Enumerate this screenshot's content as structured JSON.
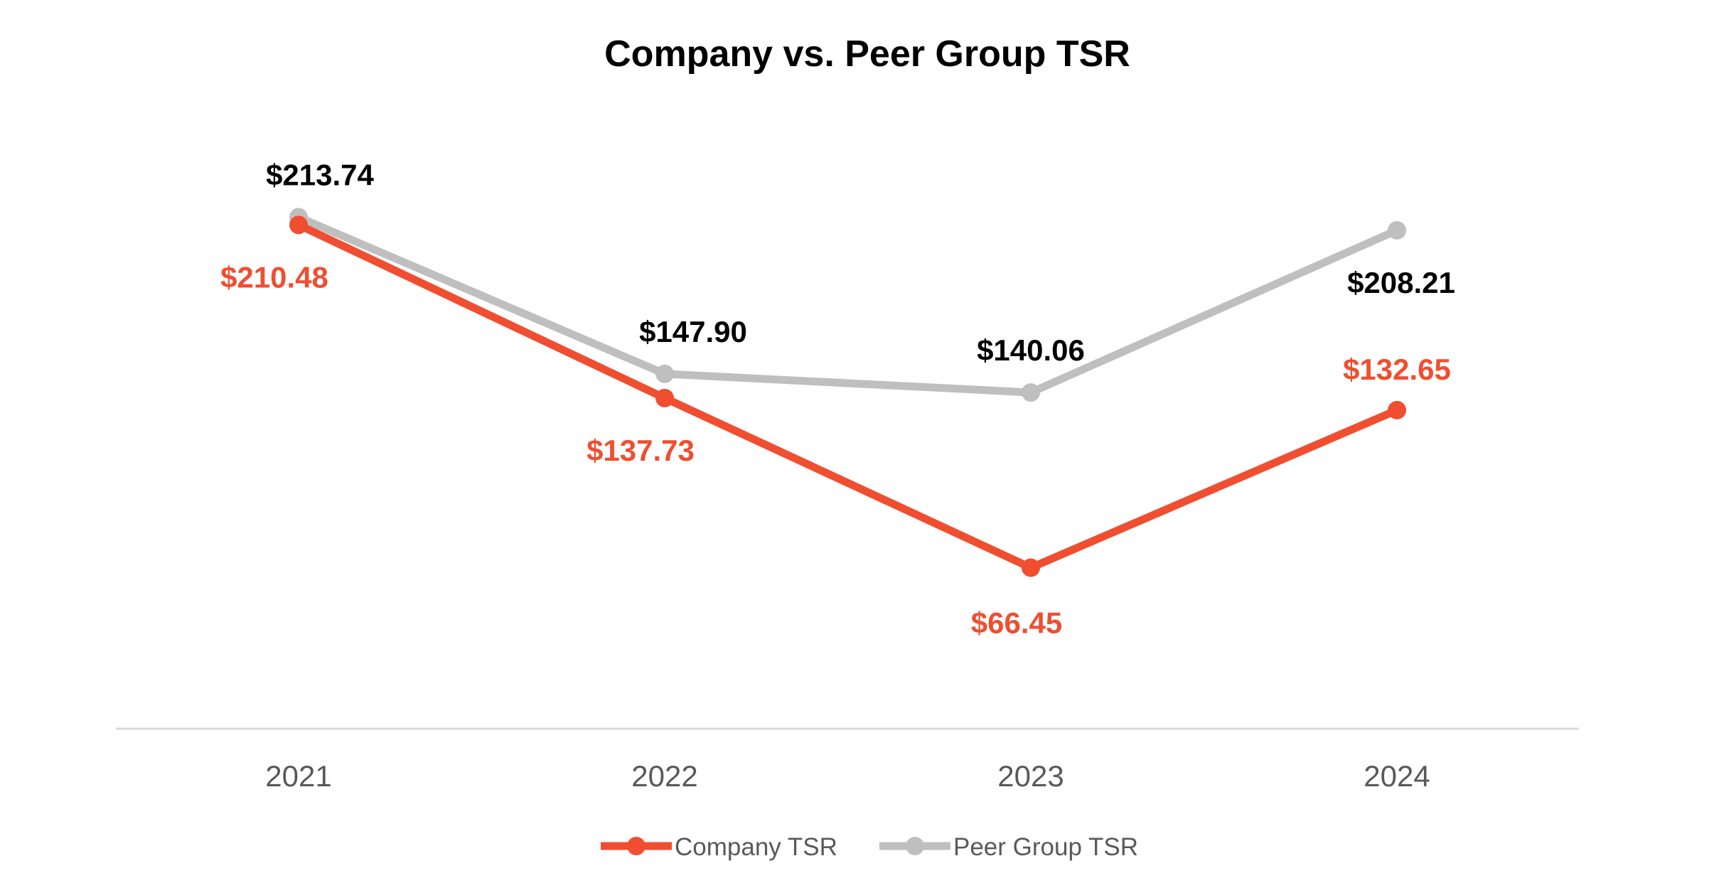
{
  "chart_data": {
    "type": "line",
    "title": "Company vs. Peer Group TSR",
    "xlabel": "",
    "ylabel": "",
    "categories": [
      "2021",
      "2022",
      "2023",
      "2024"
    ],
    "ylim": [
      0,
      250
    ],
    "grid": false,
    "legend_position": "bottom",
    "series": [
      {
        "name": "Company TSR",
        "color": "#F04E30",
        "values": [
          210.48,
          137.73,
          66.45,
          132.65
        ],
        "labels": [
          "$210.48",
          "$137.73",
          "$66.45",
          "$132.65"
        ],
        "label_color": "#F04E30"
      },
      {
        "name": "Peer Group TSR",
        "color": "#BFBFBF",
        "values": [
          213.74,
          147.9,
          140.06,
          208.21
        ],
        "labels": [
          "$213.74",
          "$147.90",
          "$140.06",
          "$208.21"
        ],
        "label_color": "#000000"
      }
    ]
  }
}
